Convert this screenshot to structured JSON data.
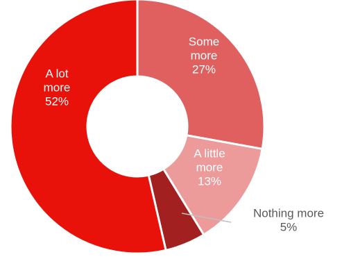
{
  "chart_data": {
    "type": "pie",
    "donut": true,
    "title": "",
    "slices": [
      {
        "label_lines": [
          "Some",
          "more"
        ],
        "value": 27,
        "value_label": "27%",
        "color": "#E06060",
        "label_color": "#ffffff"
      },
      {
        "label_lines": [
          "A little",
          "more"
        ],
        "value": 13,
        "value_label": "13%",
        "color": "#EC9A9A",
        "label_color": "#ffffff"
      },
      {
        "label_lines": [
          "Nothing more"
        ],
        "value": 5,
        "value_label": "5%",
        "color": "#A32020",
        "label_color": "#595959"
      },
      {
        "label_lines": [
          "A lot",
          "more"
        ],
        "value": 52,
        "value_label": "52%",
        "color": "#E8120A",
        "label_color": "#ffffff"
      }
    ]
  }
}
